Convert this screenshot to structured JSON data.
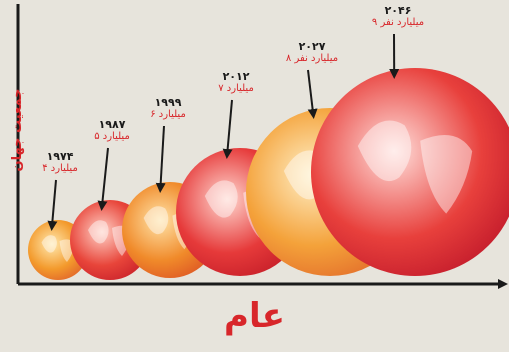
{
  "chart_data": {
    "type": "scatter",
    "title": "",
    "xlabel": "عام",
    "ylabel": "جمعيت جهان",
    "points": [
      {
        "year": "۱۹۷۴",
        "population": "۴ ميليارد"
      },
      {
        "year": "۱۹۸۷",
        "population": "۵ ميليارد"
      },
      {
        "year": "۱۹۹۹",
        "population": "۶ ميليارد"
      },
      {
        "year": "۲۰۱۲",
        "population": "۷ ميليارد"
      },
      {
        "year": "۲۰۲۷",
        "population": "۸ ميليارد نفر"
      },
      {
        "year": "۲۰۴۶",
        "population": "۹ ميليارد نفر"
      }
    ],
    "colors": {
      "axis": "#1a1a1a",
      "accent": "#d8262a"
    }
  }
}
